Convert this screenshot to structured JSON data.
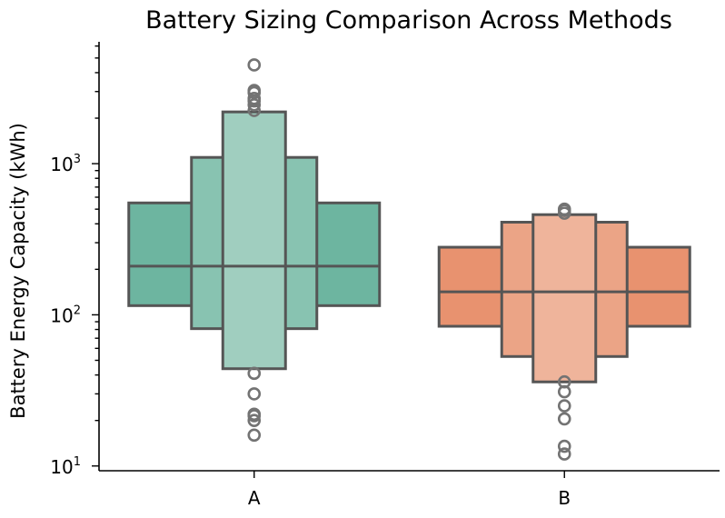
{
  "chart_data": {
    "type": "boxen",
    "title": "Battery Sizing Comparison Across Methods",
    "xlabel": "",
    "ylabel": "Battery Energy Capacity (kWh)",
    "yscale": "log",
    "ylim": [
      9.3,
      6400
    ],
    "yticks": [
      {
        "value": 10,
        "base": "10",
        "exp": "1"
      },
      {
        "value": 100,
        "base": "10",
        "exp": "2"
      },
      {
        "value": 1000,
        "base": "10",
        "exp": "3"
      }
    ],
    "categories": [
      "A",
      "B"
    ],
    "grid": false,
    "legend": "none",
    "groups": [
      {
        "name": "A",
        "colors": [
          "#6db5a0",
          "#88c3b1",
          "#a0cebf"
        ],
        "median": 210,
        "boxes": [
          {
            "low": 115,
            "high": 550
          },
          {
            "low": 81,
            "high": 1100
          },
          {
            "low": 44,
            "high": 2200
          }
        ],
        "outliers": [
          16,
          20,
          21.5,
          22,
          30,
          41,
          2250,
          2450,
          2600,
          2700,
          2950,
          3050,
          4500
        ]
      },
      {
        "name": "B",
        "colors": [
          "#e8926f",
          "#eba486",
          "#efb49b"
        ],
        "median": 142,
        "boxes": [
          {
            "low": 84,
            "high": 280
          },
          {
            "low": 53,
            "high": 410
          },
          {
            "low": 36,
            "high": 460
          }
        ],
        "outliers": [
          12,
          13.5,
          20.5,
          25,
          31,
          36,
          470,
          490,
          500
        ]
      }
    ]
  }
}
